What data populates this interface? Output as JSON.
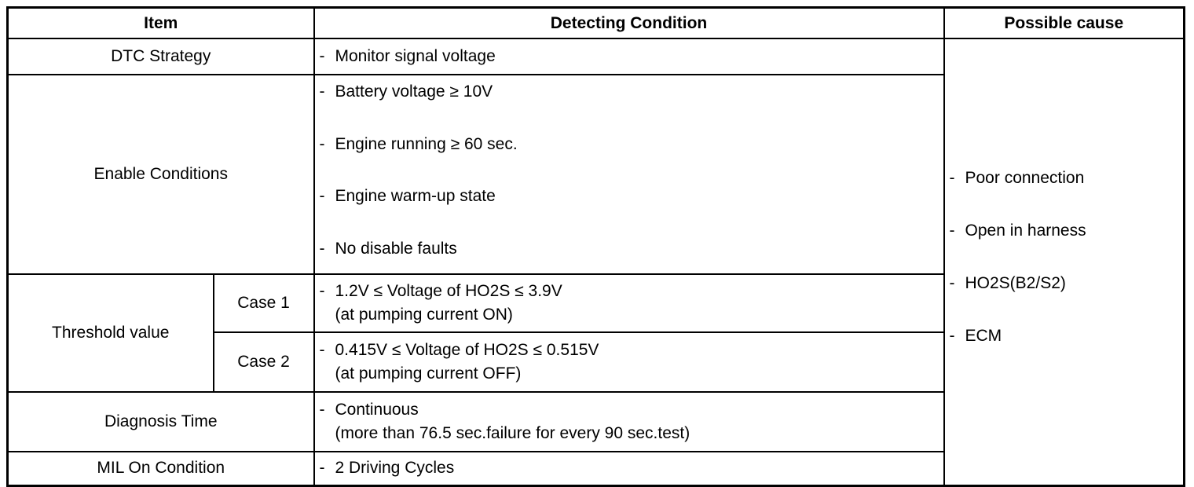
{
  "header": {
    "item": "Item",
    "detecting": "Detecting Condition",
    "cause": "Possible cause"
  },
  "rows": {
    "strategy": {
      "item": "DTC Strategy",
      "condition": "Monitor signal voltage"
    },
    "enable": {
      "item": "Enable Conditions",
      "conditions": [
        "Battery voltage ≥ 10V",
        "Engine running ≥ 60 sec.",
        "Engine warm-up state",
        "No disable faults"
      ]
    },
    "threshold": {
      "item": "Threshold value",
      "case1": {
        "label": "Case 1",
        "line1": "1.2V ≤ Voltage of HO2S ≤ 3.9V",
        "line2": "(at pumping current ON)"
      },
      "case2": {
        "label": "Case 2",
        "line1": "0.415V ≤ Voltage of HO2S ≤ 0.515V",
        "line2": "(at pumping current OFF)"
      }
    },
    "diagnosis": {
      "item": "Diagnosis Time",
      "line1": "Continuous",
      "line2": "(more than 76.5 sec.failure for every 90 sec.test)"
    },
    "mil": {
      "item": "MIL On Condition",
      "condition": "2 Driving Cycles"
    }
  },
  "causes": [
    "Poor connection",
    "Open in harness",
    "HO2S(B2/S2)",
    "ECM"
  ],
  "bullet": "-"
}
